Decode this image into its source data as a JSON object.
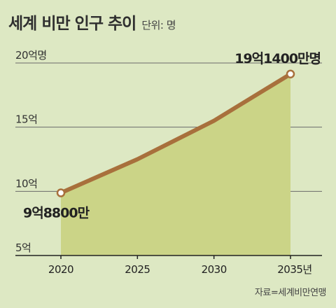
{
  "chart_data": {
    "type": "area",
    "title": "세계 비만 인구 추이",
    "unit_label": "단위: 명",
    "x": [
      2020,
      2025,
      2030,
      2035
    ],
    "x_tick_labels": [
      "2020",
      "2025",
      "2030",
      "2035년"
    ],
    "series": [
      {
        "values": [
          9.88,
          12.5,
          15.5,
          19.14
        ]
      }
    ],
    "y_unit": "억 명",
    "ylim": [
      5,
      20
    ],
    "y_ticks": [
      5,
      10,
      15,
      20
    ],
    "y_tick_labels": [
      "5억",
      "10억",
      "15억",
      "20억명"
    ],
    "annotations": {
      "start": "9억8800만",
      "end": "19억1400만명"
    },
    "grid": true,
    "colors": {
      "fill": "#cbd487",
      "line": "#a8703c",
      "grid": "#6a6a6a",
      "marker": "#ffffff"
    }
  },
  "source": "자료=세계비만연맹"
}
